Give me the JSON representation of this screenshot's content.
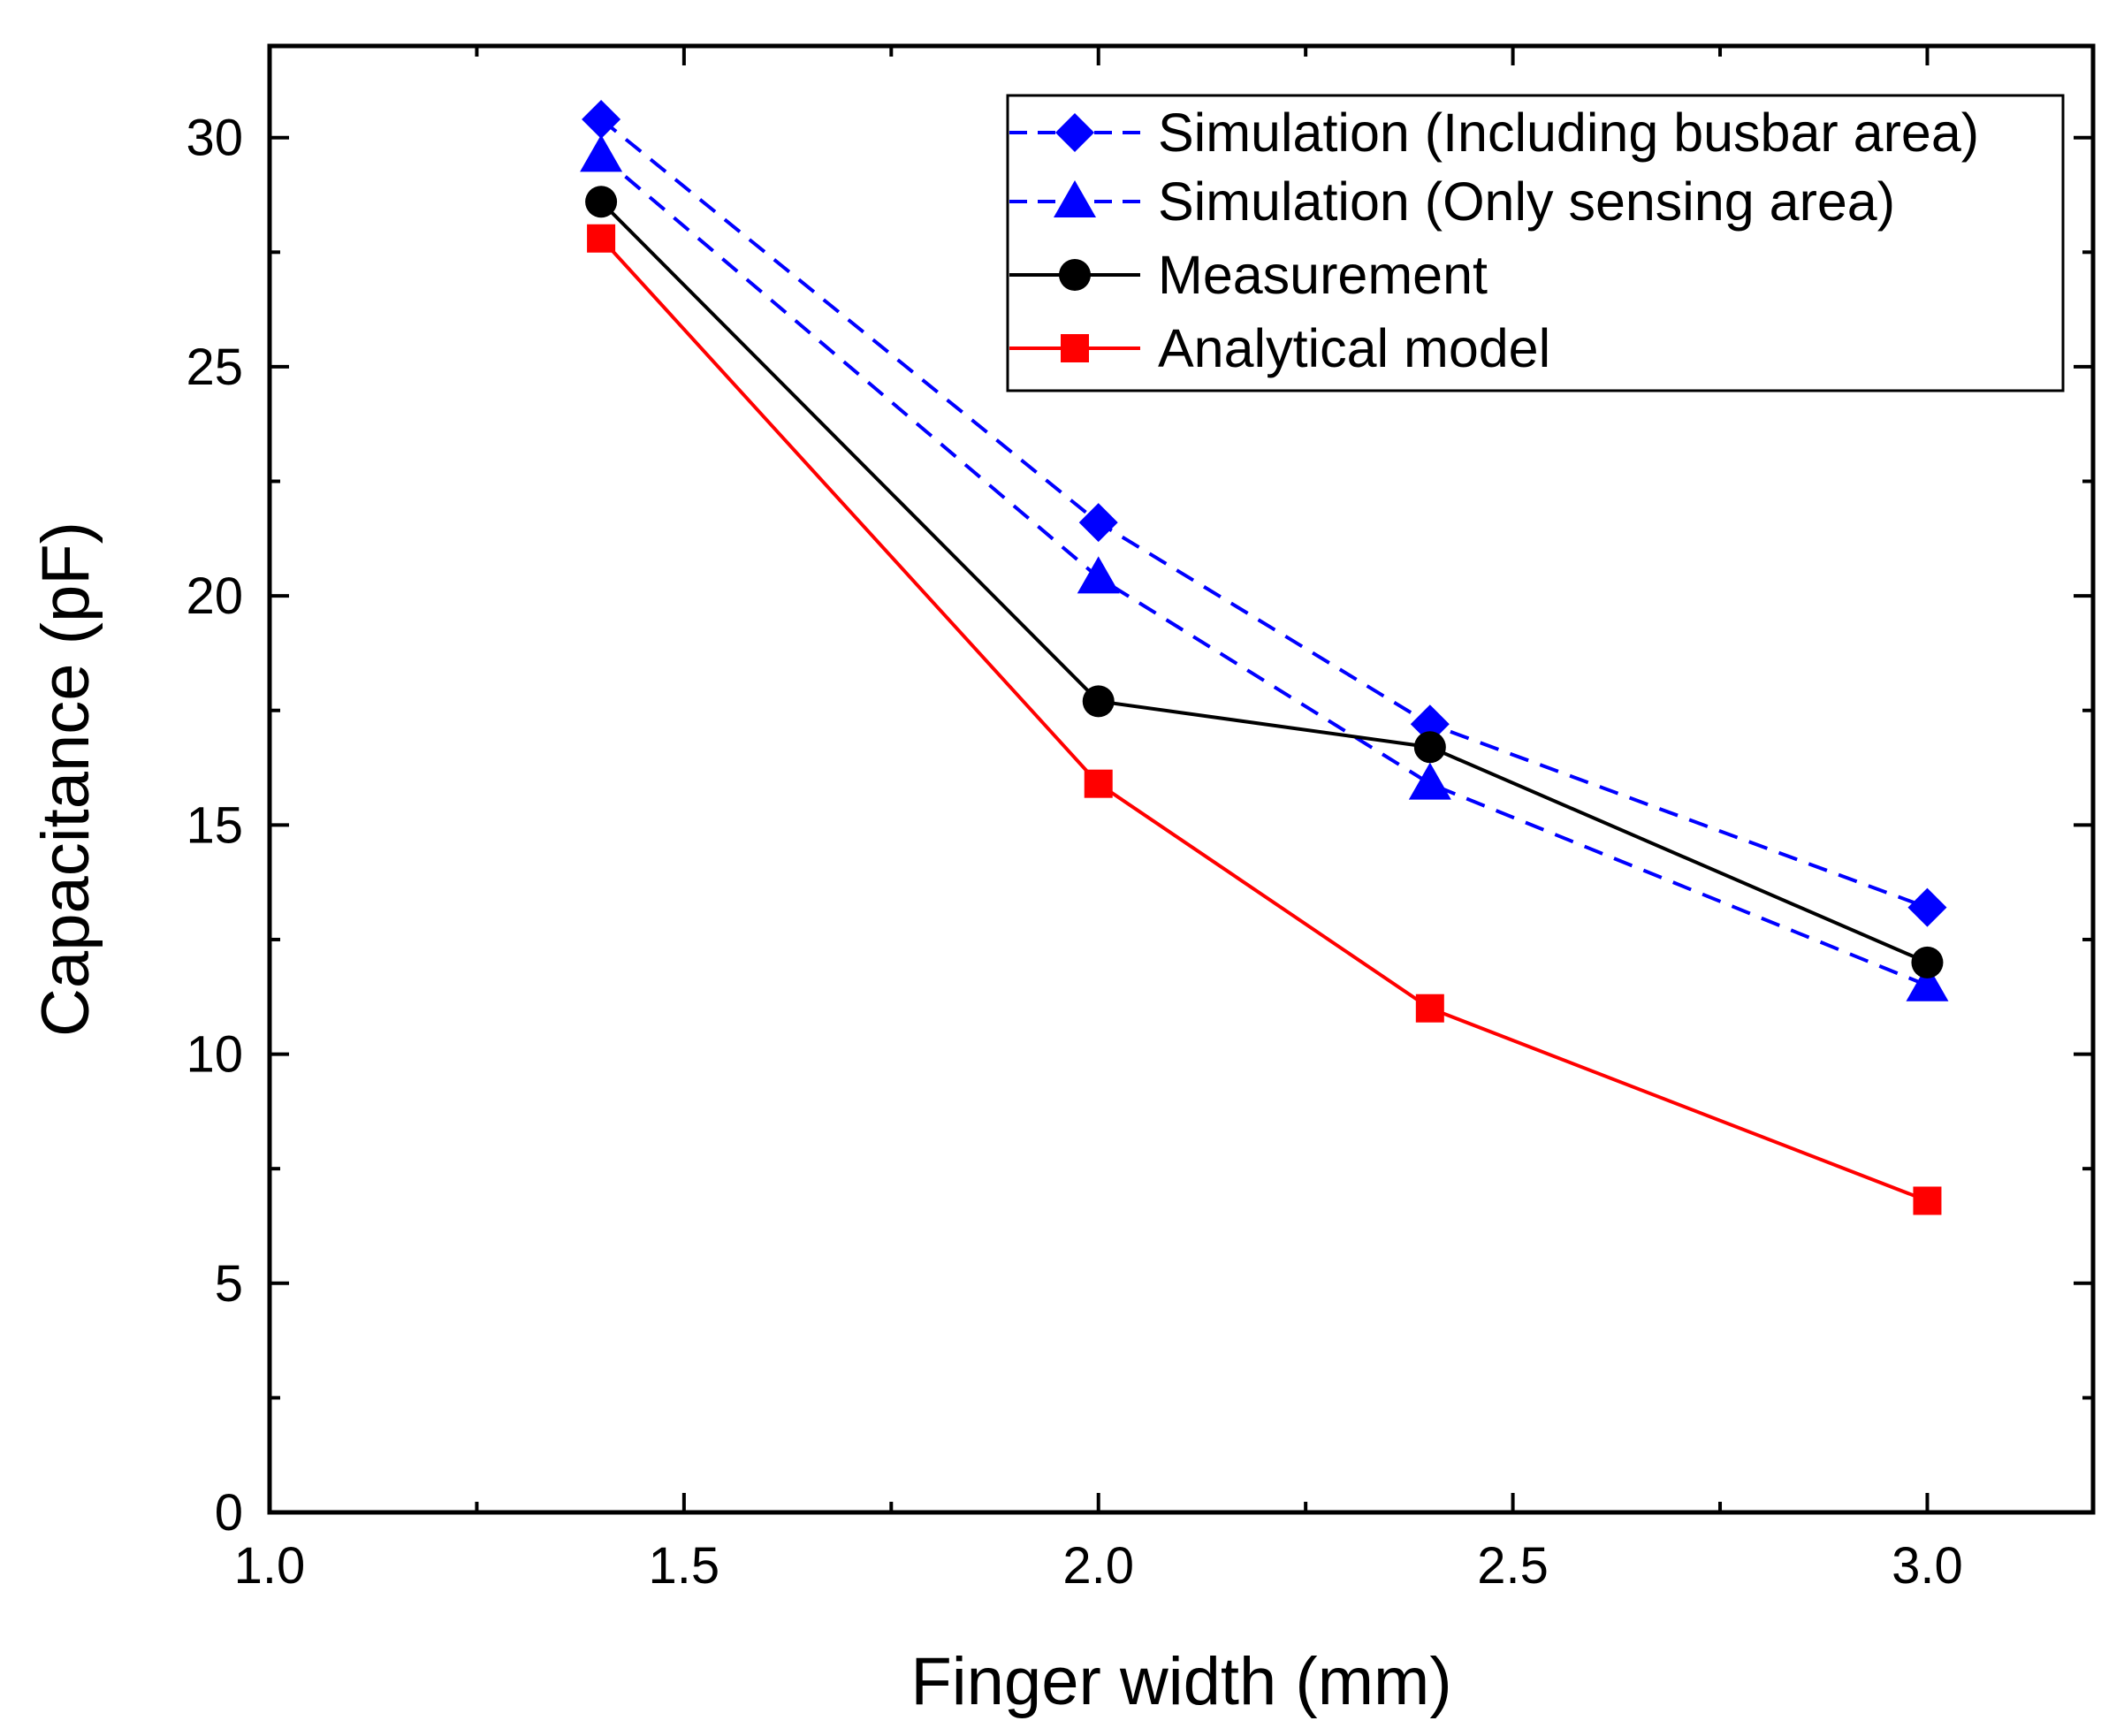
{
  "chart_data": {
    "type": "line",
    "title": "",
    "xlabel": "Finger width (mm)",
    "ylabel": "Capacitance (pF)",
    "xlim": [
      1.0,
      3.2
    ],
    "ylim": [
      0,
      32
    ],
    "x_ticks": [
      1.0,
      1.5,
      2.0,
      2.5,
      3.0
    ],
    "x_tick_labels": [
      "1.0",
      "1.5",
      "2.0",
      "2.5",
      "3.0"
    ],
    "y_ticks": [
      0,
      5,
      10,
      15,
      20,
      25,
      30
    ],
    "y_tick_labels": [
      "0",
      "5",
      "10",
      "15",
      "20",
      "25",
      "30"
    ],
    "grid": false,
    "legend_position": "top-right",
    "series": [
      {
        "name": "Simulation (Including busbar area)",
        "x": [
          1.4,
          2.0,
          2.4,
          3.0
        ],
        "values": [
          30.4,
          21.6,
          17.2,
          13.2
        ],
        "color": "#0000ff",
        "line_style": "dashed",
        "marker": "diamond"
      },
      {
        "name": "Simulation (Only sensing area)",
        "x": [
          1.4,
          2.0,
          2.4,
          3.0
        ],
        "values": [
          29.6,
          20.4,
          15.9,
          11.5
        ],
        "color": "#0000ff",
        "line_style": "dashed",
        "marker": "triangle"
      },
      {
        "name": "Measurement",
        "x": [
          1.4,
          2.0,
          2.4,
          3.0
        ],
        "values": [
          28.6,
          17.7,
          16.7,
          12.0
        ],
        "color": "#000000",
        "line_style": "solid",
        "marker": "circle"
      },
      {
        "name": "Analytical model",
        "x": [
          1.4,
          2.0,
          2.4,
          3.0
        ],
        "values": [
          27.8,
          15.9,
          11.0,
          6.8
        ],
        "color": "#ff0000",
        "line_style": "solid",
        "marker": "square"
      }
    ]
  }
}
